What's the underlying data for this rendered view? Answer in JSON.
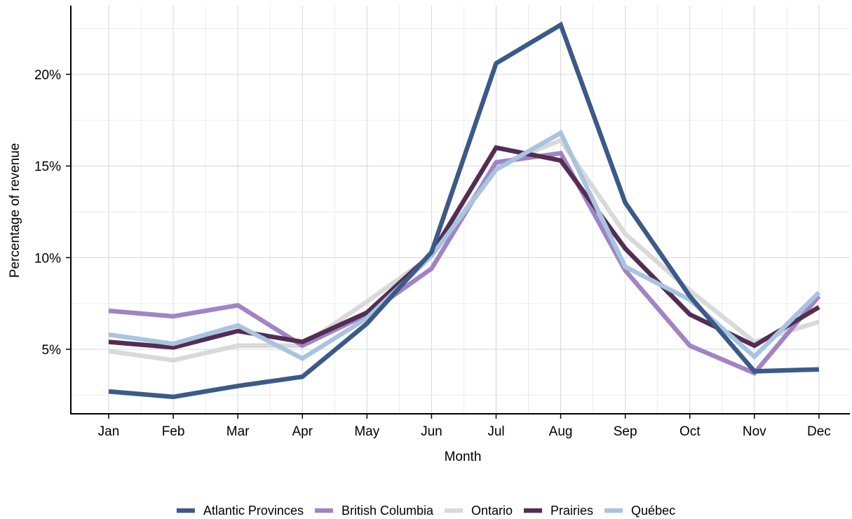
{
  "chart_data": {
    "type": "line",
    "title": "",
    "xlabel": "Month",
    "ylabel": "Percentage of revenue",
    "categories": [
      "Jan",
      "Feb",
      "Mar",
      "Apr",
      "May",
      "Jun",
      "Jul",
      "Aug",
      "Sep",
      "Oct",
      "Nov",
      "Dec"
    ],
    "ylim": [
      1.0,
      23.9
    ],
    "y_ticks": [
      5,
      10,
      15,
      20
    ],
    "y_tick_labels": [
      "5%",
      "10%",
      "15%",
      "20%"
    ],
    "grid": true,
    "legend_position": "bottom",
    "series": [
      {
        "name": "Ontario",
        "color": "#d9d9d9",
        "values": [
          4.9,
          4.4,
          5.2,
          5.2,
          7.6,
          10.1,
          15.0,
          16.4,
          11.3,
          8.2,
          5.4,
          6.5
        ]
      },
      {
        "name": "British Columbia",
        "color": "#a184c3",
        "values": [
          7.1,
          6.8,
          7.4,
          5.2,
          6.9,
          9.4,
          15.2,
          15.7,
          9.3,
          5.2,
          3.7,
          7.9
        ]
      },
      {
        "name": "Prairies",
        "color": "#532d53",
        "values": [
          5.4,
          5.1,
          6.0,
          5.4,
          7.0,
          10.2,
          16.0,
          15.3,
          10.5,
          6.9,
          5.2,
          7.3
        ]
      },
      {
        "name": "Québec",
        "color": "#a8c4e0",
        "values": [
          5.8,
          5.3,
          6.3,
          4.5,
          6.7,
          10.1,
          14.8,
          16.8,
          9.5,
          7.7,
          4.6,
          8.1
        ]
      },
      {
        "name": "Atlantic Provinces",
        "color": "#3b5a88",
        "values": [
          2.7,
          2.4,
          3.0,
          3.5,
          6.4,
          10.3,
          20.6,
          22.7,
          13.0,
          7.9,
          3.8,
          3.9
        ]
      }
    ],
    "legend_order": [
      "Atlantic Provinces",
      "British Columbia",
      "Ontario",
      "Prairies",
      "Québec"
    ]
  }
}
